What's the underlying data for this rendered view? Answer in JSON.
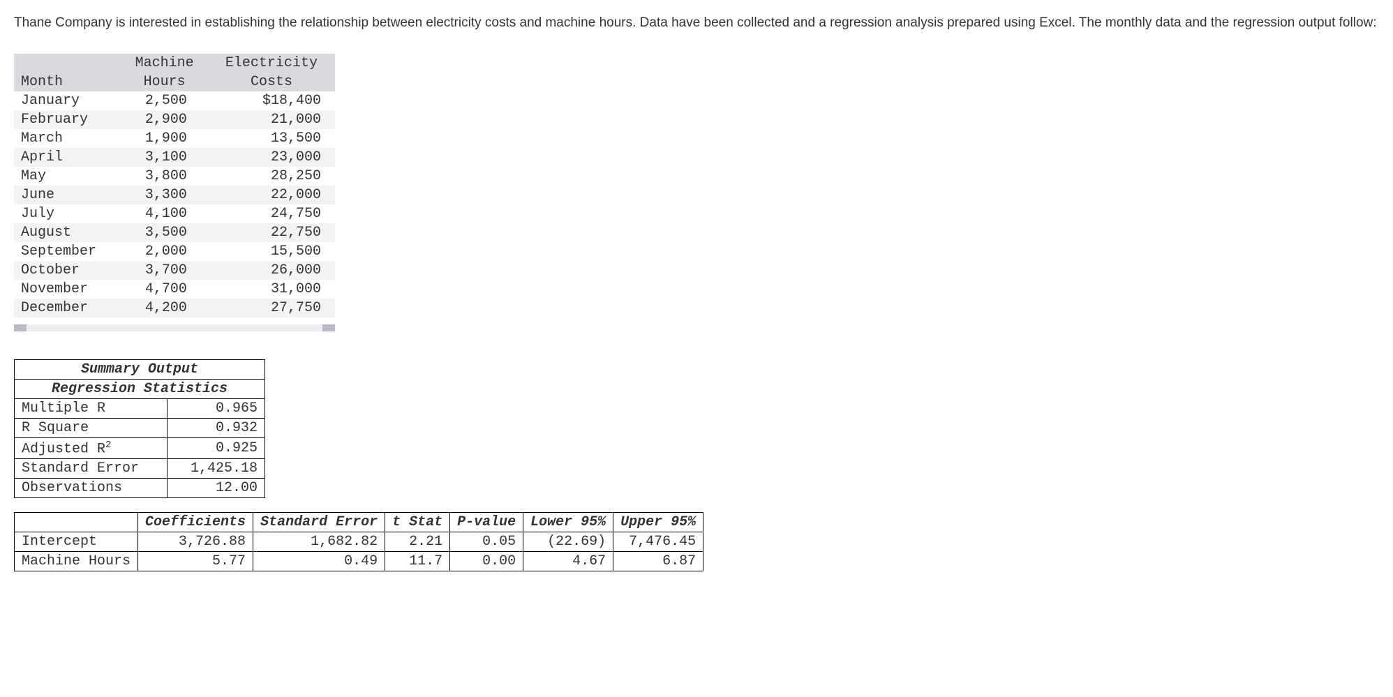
{
  "intro": "Thane Company is interested in establishing the relationship between electricity costs and machine hours. Data have been collected and a regression analysis prepared using Excel. The monthly data and the regression output follow:",
  "data_table": {
    "headers": {
      "month": "Month",
      "hours": "Machine Hours",
      "costs": "Electricity Costs"
    },
    "header_hours_1": "Machine",
    "header_hours_2": "Hours",
    "header_costs_1": "Electricity",
    "header_costs_2": "Costs",
    "rows": [
      {
        "month": "January",
        "hours": "2,500",
        "costs": "$18,400"
      },
      {
        "month": "February",
        "hours": "2,900",
        "costs": "21,000"
      },
      {
        "month": "March",
        "hours": "1,900",
        "costs": "13,500"
      },
      {
        "month": "April",
        "hours": "3,100",
        "costs": "23,000"
      },
      {
        "month": "May",
        "hours": "3,800",
        "costs": "28,250"
      },
      {
        "month": "June",
        "hours": "3,300",
        "costs": "22,000"
      },
      {
        "month": "July",
        "hours": "4,100",
        "costs": "24,750"
      },
      {
        "month": "August",
        "hours": "3,500",
        "costs": "22,750"
      },
      {
        "month": "September",
        "hours": "2,000",
        "costs": "15,500"
      },
      {
        "month": "October",
        "hours": "3,700",
        "costs": "26,000"
      },
      {
        "month": "November",
        "hours": "4,700",
        "costs": "31,000"
      },
      {
        "month": "December",
        "hours": "4,200",
        "costs": "27,750"
      }
    ]
  },
  "summary": {
    "title": "Summary Output",
    "subtitle": "Regression Statistics",
    "rows": [
      {
        "label": "Multiple R",
        "value": "0.965"
      },
      {
        "label": "R Square",
        "value": "0.932"
      },
      {
        "label_html": "Adjusted R<sup>2</sup>",
        "label": "Adjusted R2",
        "value": "0.925"
      },
      {
        "label": "Standard Error",
        "value": "1,425.18"
      },
      {
        "label": "Observations",
        "value": "12.00"
      }
    ]
  },
  "coeff": {
    "headers": [
      "",
      "Coefficients",
      "Standard Error",
      "t Stat",
      "P-value",
      "Lower 95%",
      "Upper 95%"
    ],
    "rows": [
      {
        "label": "Intercept",
        "cells": [
          "3,726.88",
          "1,682.82",
          "2.21",
          "0.05",
          "(22.69)",
          "7,476.45"
        ]
      },
      {
        "label": "Machine Hours",
        "cells": [
          "5.77",
          "0.49",
          "11.7",
          "0.00",
          "4.67",
          "6.87"
        ]
      }
    ]
  },
  "colors": {
    "header_bg": "#d9d9e0",
    "zebra_bg": "#f3f3f6",
    "text": "#333333",
    "border": "#000000"
  }
}
